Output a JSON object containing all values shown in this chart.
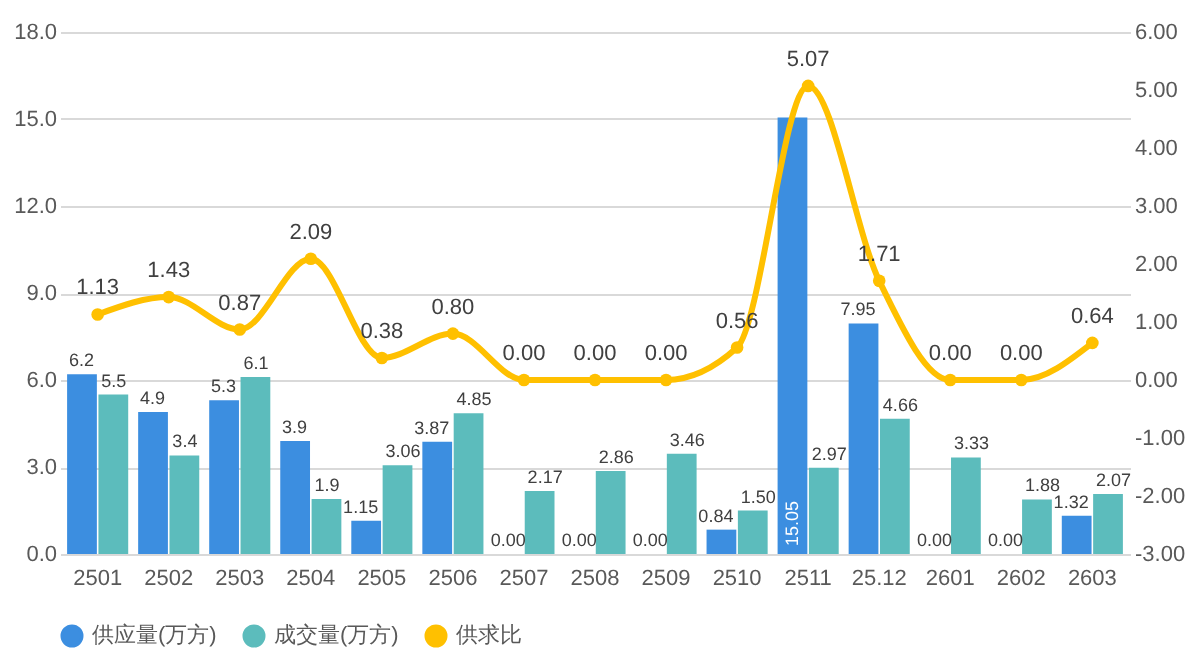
{
  "chart_data": {
    "type": "bar",
    "categories": [
      "2501",
      "2502",
      "2503",
      "2504",
      "2505",
      "2506",
      "2507",
      "2508",
      "2509",
      "2510",
      "2511",
      "25.12",
      "2601",
      "2602",
      "2603"
    ],
    "series": [
      {
        "name": "供应量(万方)",
        "color": "#3c8ee0",
        "values": [
          6.2,
          4.9,
          5.3,
          3.9,
          1.15,
          3.87,
          0,
          0,
          0,
          0.84,
          15.05,
          7.95,
          0,
          0,
          1.32
        ],
        "value_labels": [
          "6.2",
          "4.9",
          "5.3",
          "3.9",
          "1.15",
          "3.87",
          "0.00",
          "0.00",
          "0.00",
          "0.84",
          "15.05",
          "7.95",
          "0.00",
          "0.00",
          "1.32"
        ]
      },
      {
        "name": "成交量(万方)",
        "color": "#5cbcbc",
        "values": [
          5.5,
          3.4,
          6.1,
          1.9,
          3.06,
          4.85,
          2.17,
          2.86,
          3.46,
          1.5,
          2.97,
          4.66,
          3.33,
          1.88,
          2.07
        ],
        "value_labels": [
          "5.5",
          "3.4",
          "6.1",
          "1.9",
          "3.06",
          "4.85",
          "2.17",
          "2.86",
          "3.46",
          "1.50",
          "2.97",
          "4.66",
          "3.33",
          "1.88",
          "2.07"
        ]
      },
      {
        "name": "供求比",
        "type": "line",
        "axis": "y2",
        "color": "#ffc000",
        "values": [
          1.13,
          1.43,
          0.87,
          2.09,
          0.38,
          0.8,
          0,
          0,
          0,
          0.56,
          5.07,
          1.71,
          0,
          0,
          0.64
        ],
        "value_labels": [
          "1.13",
          "1.43",
          "0.87",
          "2.09",
          "0.38",
          "0.80",
          "0.00",
          "0.00",
          "0.00",
          "0.56",
          "5.07",
          "1.71",
          "0.00",
          "0.00",
          "0.64"
        ]
      }
    ],
    "ylim": [
      0,
      18
    ],
    "yticks": [
      {
        "value": 0,
        "label": "0.0"
      },
      {
        "value": 3,
        "label": "3.0"
      },
      {
        "value": 6,
        "label": "6.0"
      },
      {
        "value": 9,
        "label": "9.0"
      },
      {
        "value": 12,
        "label": "12.0"
      },
      {
        "value": 15,
        "label": "15.0"
      },
      {
        "value": 18,
        "label": "18.0"
      }
    ],
    "y2lim": [
      -3,
      6
    ],
    "y2ticks": [
      {
        "value": -3,
        "label": "-3.00"
      },
      {
        "value": -2,
        "label": "-2.00"
      },
      {
        "value": -1,
        "label": "-1.00"
      },
      {
        "value": 0,
        "label": "0.00"
      },
      {
        "value": 1,
        "label": "1.00"
      },
      {
        "value": 2,
        "label": "2.00"
      },
      {
        "value": 3,
        "label": "3.00"
      },
      {
        "value": 4,
        "label": "4.00"
      },
      {
        "value": 5,
        "label": "5.00"
      },
      {
        "value": 6,
        "label": "6.00"
      }
    ],
    "grid": "y",
    "legend": "bottom",
    "marker": "circle",
    "line_style": "solid"
  }
}
